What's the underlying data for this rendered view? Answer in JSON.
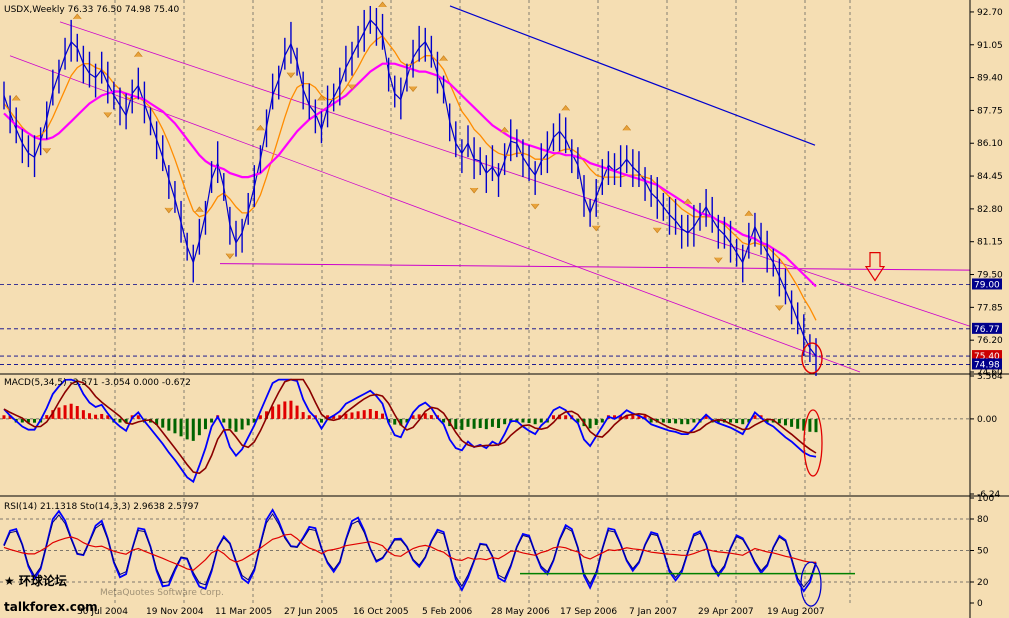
{
  "chart_data": [
    {
      "panel": "price",
      "type": "line",
      "symbol_header": "USDX,Weekly  76.33 76.50 74.98 75.40",
      "price_ticks": [
        "92.70",
        "91.05",
        "89.40",
        "87.75",
        "86.10",
        "84.45",
        "82.80",
        "81.15",
        "79.50",
        "77.85",
        "76.20",
        "74.60"
      ],
      "price_tags": [
        "79.00",
        "76.77",
        "75.40",
        "74.98"
      ],
      "date_ticks": [
        "30 Jul 2004",
        "19 Nov 2004",
        "11 Mar 2005",
        "27 Jun 2005",
        "16 Oct 2005",
        "5 Feb 2006",
        "28 May 2006",
        "17 Sep 2006",
        "7 Jan 2007",
        "29 Apr 2007",
        "19 Aug 2007"
      ],
      "ylim": [
        74.6,
        93.2
      ],
      "x_range": [
        0,
        203
      ],
      "series": [
        {
          "values": [
            88.5,
            87.6,
            86.8,
            86.1,
            85.6,
            85.4,
            86.2,
            87.3,
            88.7,
            89.6,
            90.5,
            91.2,
            90.9,
            90.1,
            89.6,
            89.4,
            89.8,
            89.1,
            88.5,
            88.0,
            87.5,
            88.6,
            89.0,
            88.1,
            87.2,
            86.3,
            85.4,
            84.3,
            83.3,
            82.1,
            80.9,
            80.1,
            81.2,
            82.5,
            84.3,
            85.1,
            83.9,
            82.0,
            81.1,
            81.6,
            82.7,
            83.9,
            85.3,
            86.9,
            88.5,
            89.3,
            90.5,
            91.1,
            90.2,
            88.8,
            88.0,
            87.6,
            86.8,
            87.9,
            88.4,
            89.0,
            89.9,
            90.5,
            91.1,
            91.7,
            92.3,
            92.0,
            91.5,
            89.7,
            88.6,
            88.3,
            89.4,
            90.4,
            90.9,
            91.2,
            90.6,
            89.6,
            88.8,
            87.2,
            86.1,
            85.6,
            86.1,
            85.3,
            85.2,
            84.6,
            84.9,
            84.4,
            85.2,
            86.2,
            86.1,
            85.4,
            84.9,
            84.5,
            85.2,
            85.6,
            86.4,
            86.7,
            86.3,
            85.6,
            85.0,
            83.4,
            82.6,
            83.4,
            84.2,
            85.0,
            84.7,
            84.9,
            85.3,
            84.9,
            84.6,
            84.2,
            83.6,
            83.3,
            82.9,
            82.5,
            82.2,
            81.8,
            81.6,
            81.9,
            82.4,
            82.9,
            82.3,
            81.8,
            81.5,
            81.1,
            80.6,
            80.1,
            81.0,
            81.9,
            81.2,
            80.6,
            80.1,
            79.4,
            78.7,
            78.0,
            77.2,
            76.4,
            75.8,
            75.4
          ],
          "color": "#0000cd"
        },
        {
          "values": [
            88.1,
            87.7,
            87.3,
            86.9,
            86.6,
            86.4,
            86.5,
            86.8,
            87.4,
            88.1,
            88.8,
            89.5,
            89.9,
            90.1,
            90.1,
            89.9,
            89.8,
            89.5,
            89.1,
            88.8,
            88.4,
            88.3,
            88.4,
            88.2,
            87.9,
            87.4,
            86.8,
            86.1,
            85.3,
            84.4,
            83.5,
            82.7,
            82.4,
            82.5,
            82.9,
            83.4,
            83.6,
            83.3,
            82.9,
            82.6,
            82.6,
            82.9,
            83.5,
            84.4,
            85.4,
            86.4,
            87.4,
            88.3,
            88.9,
            89.1,
            89.1,
            88.9,
            88.5,
            88.3,
            88.3,
            88.5,
            88.9,
            89.4,
            89.9,
            90.5,
            91.0,
            91.3,
            91.5,
            91.1,
            90.7,
            90.2,
            90.0,
            90.1,
            90.3,
            90.5,
            90.5,
            90.2,
            89.8,
            89.1,
            88.4,
            87.7,
            87.3,
            86.8,
            86.5,
            86.1,
            85.8,
            85.6,
            85.5,
            85.5,
            85.6,
            85.6,
            85.5,
            85.3,
            85.3,
            85.3,
            85.5,
            85.7,
            85.8,
            85.8,
            85.6,
            85.2,
            84.8,
            84.5,
            84.4,
            84.4,
            84.4,
            84.4,
            84.5,
            84.5,
            84.5,
            84.4,
            84.3,
            84.0,
            83.7,
            83.4,
            83.1,
            82.8,
            82.6,
            82.4,
            82.4,
            82.4,
            82.4,
            82.2,
            82.0,
            81.7,
            81.4,
            81.1,
            81.0,
            81.1,
            81.0,
            80.9,
            80.6,
            80.3,
            79.9,
            79.4,
            78.9,
            78.3,
            77.8,
            77.2
          ],
          "color": "#ff8c00"
        },
        {
          "values": [
            87.6,
            87.3,
            87.0,
            86.8,
            86.6,
            86.4,
            86.3,
            86.3,
            86.4,
            86.6,
            86.9,
            87.2,
            87.5,
            87.8,
            88.1,
            88.3,
            88.5,
            88.6,
            88.7,
            88.7,
            88.6,
            88.5,
            88.4,
            88.3,
            88.1,
            87.9,
            87.7,
            87.4,
            87.1,
            86.7,
            86.3,
            85.9,
            85.5,
            85.2,
            85.0,
            84.9,
            84.8,
            84.6,
            84.5,
            84.4,
            84.4,
            84.5,
            84.6,
            84.9,
            85.2,
            85.5,
            85.9,
            86.3,
            86.7,
            87.0,
            87.3,
            87.5,
            87.7,
            87.9,
            88.1,
            88.3,
            88.5,
            88.8,
            89.1,
            89.4,
            89.7,
            89.9,
            90.1,
            90.1,
            90.1,
            90.0,
            89.9,
            89.8,
            89.7,
            89.7,
            89.6,
            89.5,
            89.3,
            89.1,
            88.8,
            88.5,
            88.2,
            87.9,
            87.6,
            87.3,
            87.0,
            86.8,
            86.6,
            86.4,
            86.3,
            86.1,
            86.0,
            85.9,
            85.8,
            85.7,
            85.6,
            85.6,
            85.5,
            85.5,
            85.4,
            85.3,
            85.1,
            85.0,
            84.9,
            84.8,
            84.7,
            84.6,
            84.5,
            84.4,
            84.3,
            84.2,
            84.1,
            84.0,
            83.8,
            83.6,
            83.4,
            83.2,
            83.0,
            82.8,
            82.6,
            82.5,
            82.4,
            82.2,
            82.1,
            81.9,
            81.7,
            81.5,
            81.4,
            81.3,
            81.1,
            81.0,
            80.8,
            80.6,
            80.4,
            80.1,
            79.8,
            79.5,
            79.2,
            78.9
          ],
          "color": "#ff00ff"
        }
      ],
      "annotations": [
        "79.50 horizontal support line",
        "down arrow marker near 79.50",
        "red ellipse on last bars"
      ]
    },
    {
      "panel": "macd",
      "type": "bar",
      "header": "MACD(5,34,5) -3.571 -3.054 0.000 -0.672",
      "ticks": [
        "3.564",
        "0.00",
        "-6.24"
      ],
      "ylim": [
        -6.24,
        3.564
      ]
    },
    {
      "panel": "rsi",
      "type": "line",
      "header": "RSI(14) 21.1318 Sto(14,3,3) 2.9638 2.5797",
      "ticks": [
        "100",
        "80",
        "50",
        "20",
        "0"
      ],
      "ylim": [
        0,
        100
      ]
    }
  ],
  "watermark": {
    "line1": "talkforex.com",
    "line2": "MetaQuotes Software Corp."
  }
}
